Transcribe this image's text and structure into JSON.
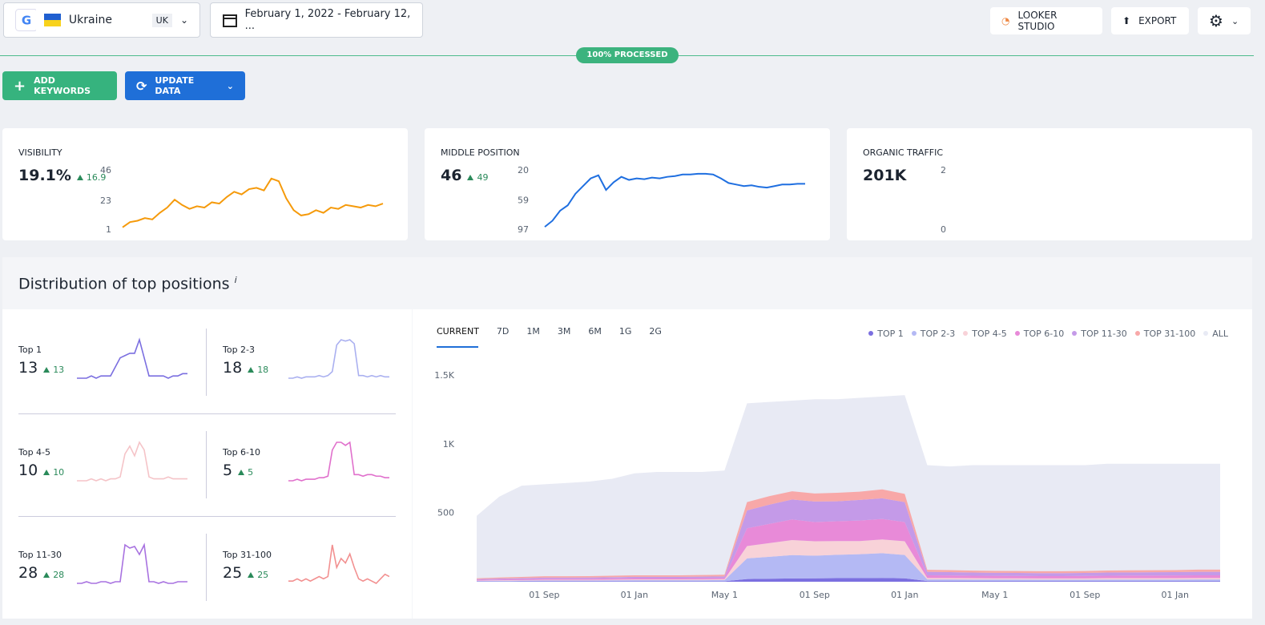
{
  "header": {
    "country": "Ukraine",
    "country_code": "UK",
    "date_range": "February 1, 2022 - February 12, ...",
    "actions": [
      "LOOKER STUDIO",
      "EXPORT"
    ]
  },
  "progress": "100% PROCESSED",
  "toolbar": {
    "add": "ADD KEYWORDS",
    "update": "UPDATE DATA"
  },
  "cards": [
    {
      "title": "VISIBILITY",
      "value": "19.1%",
      "change": 16.9,
      "chart": {
        "type": "line",
        "color": "#f59a0b",
        "ylim": [
          1,
          46
        ],
        "yticks": [
          46,
          23,
          1
        ],
        "values": [
          3,
          7,
          8,
          10,
          9,
          14,
          18,
          24,
          20,
          17,
          19,
          18,
          22,
          21,
          26,
          30,
          28,
          32,
          33,
          31,
          40,
          38,
          25,
          16,
          12,
          13,
          16,
          14,
          18,
          17,
          20,
          19,
          18,
          20,
          19,
          21
        ]
      }
    },
    {
      "title": "MIDDLE POSITION",
      "value": "46",
      "change": 49,
      "chart": {
        "type": "line",
        "color": "#1f6fe0",
        "ylim": [
          97,
          20
        ],
        "yticks": [
          20,
          59,
          97
        ],
        "values": [
          93,
          85,
          72,
          65,
          50,
          40,
          30,
          26,
          45,
          35,
          28,
          32,
          30,
          31,
          29,
          30,
          28,
          27,
          25,
          25,
          24,
          24,
          25,
          30,
          36,
          38,
          40,
          39,
          41,
          42,
          40,
          38,
          38,
          37,
          37
        ]
      }
    },
    {
      "title": "ORGANIC TRAFFIC",
      "value": "201K",
      "chart": {
        "type": "line",
        "ylim": [
          0,
          2
        ],
        "yticks": [
          2,
          0
        ]
      }
    }
  ],
  "distribution": {
    "title": "Distribution of top positions",
    "info": "i",
    "tiles": [
      {
        "label": "Top 1",
        "value": 13,
        "change": 13,
        "color": "#7b6fe0",
        "values": [
          3,
          3,
          3,
          4,
          3,
          4,
          4,
          4,
          8,
          12,
          13,
          14,
          14,
          20,
          12,
          4,
          4,
          4,
          4,
          3,
          4,
          4,
          5,
          5
        ]
      },
      {
        "label": "Top 2-3",
        "value": 18,
        "change": 18,
        "color": "#aab0f0",
        "values": [
          5,
          5,
          6,
          5,
          6,
          6,
          6,
          7,
          6,
          7,
          10,
          30,
          34,
          33,
          34,
          31,
          7,
          7,
          6,
          7,
          6,
          7,
          6,
          6
        ]
      },
      {
        "label": "Top 4-5",
        "value": 10,
        "change": 10,
        "color": "#f5c4c8",
        "values": [
          4,
          4,
          4,
          5,
          4,
          5,
          4,
          5,
          5,
          6,
          18,
          22,
          17,
          24,
          20,
          6,
          5,
          5,
          5,
          6,
          5,
          5,
          5,
          5
        ]
      },
      {
        "label": "Top 6-10",
        "value": 5,
        "change": 5,
        "color": "#e070cc",
        "values": [
          5,
          5,
          6,
          5,
          6,
          6,
          6,
          7,
          7,
          8,
          25,
          30,
          30,
          28,
          30,
          9,
          9,
          8,
          9,
          9,
          8,
          8,
          7,
          7
        ]
      },
      {
        "label": "Top 11-30",
        "value": 28,
        "change": 28,
        "color": "#a872e0",
        "values": [
          6,
          6,
          7,
          6,
          6,
          7,
          7,
          6,
          7,
          7,
          30,
          28,
          29,
          24,
          30,
          7,
          7,
          6,
          7,
          6,
          6,
          7,
          7,
          7
        ]
      },
      {
        "label": "Top 31-100",
        "value": 25,
        "change": 25,
        "color": "#f29090",
        "values": [
          8,
          8,
          9,
          8,
          9,
          8,
          9,
          10,
          9,
          10,
          24,
          14,
          18,
          16,
          20,
          14,
          9,
          8,
          9,
          8,
          7,
          9,
          11,
          10
        ]
      }
    ],
    "tabs": [
      "CURRENT",
      "7D",
      "1M",
      "3M",
      "6M",
      "1G",
      "2G"
    ],
    "active_tab": 0,
    "chart": {
      "type": "area",
      "stacked": true,
      "ylim": [
        0,
        1600
      ],
      "yticks": [
        500,
        {
          "value": 1000,
          "label": "1K"
        },
        {
          "value": 1500,
          "label": "1.5K"
        }
      ],
      "categories": [
        null,
        null,
        null,
        "01 Sep",
        null,
        null,
        null,
        "01 Jan",
        null,
        null,
        null,
        "May 1",
        null,
        null,
        null,
        "01 Sep",
        null,
        null,
        null,
        "01 Jan",
        null,
        null,
        null,
        "May 1",
        null,
        null,
        null,
        "01 Sep",
        null,
        null,
        null,
        "01 Jan",
        null,
        null
      ],
      "series": [
        {
          "name": "TOP 1",
          "color": "#7b6fe0",
          "values": [
            2,
            2,
            3,
            3,
            3,
            3,
            3,
            4,
            4,
            4,
            4,
            4,
            20,
            22,
            24,
            25,
            26,
            26,
            28,
            25,
            5,
            5,
            5,
            5,
            5,
            5,
            5,
            5,
            5,
            5,
            5,
            5,
            5,
            5
          ]
        },
        {
          "name": "TOP 2-3",
          "color": "#b4b9f4",
          "values": [
            4,
            5,
            5,
            6,
            6,
            6,
            7,
            7,
            7,
            7,
            7,
            8,
            150,
            160,
            170,
            165,
            170,
            175,
            180,
            170,
            12,
            12,
            11,
            11,
            11,
            10,
            10,
            10,
            11,
            11,
            11,
            11,
            12,
            12
          ]
        },
        {
          "name": "TOP 4-5",
          "color": "#f8d2d8",
          "values": [
            3,
            4,
            4,
            5,
            5,
            5,
            5,
            6,
            6,
            6,
            6,
            6,
            90,
            100,
            110,
            105,
            100,
            95,
            100,
            100,
            10,
            10,
            10,
            9,
            9,
            9,
            9,
            9,
            10,
            10,
            10,
            10,
            10,
            10
          ]
        },
        {
          "name": "TOP 6-10",
          "color": "#e88ad8",
          "values": [
            5,
            6,
            7,
            8,
            8,
            8,
            9,
            9,
            9,
            9,
            10,
            10,
            130,
            140,
            150,
            140,
            145,
            150,
            150,
            140,
            20,
            19,
            18,
            18,
            17,
            17,
            17,
            18,
            18,
            19,
            19,
            20,
            20,
            20
          ]
        },
        {
          "name": "TOP 11-30",
          "color": "#c49ae8",
          "values": [
            5,
            6,
            7,
            8,
            8,
            9,
            9,
            10,
            10,
            10,
            10,
            11,
            130,
            140,
            145,
            150,
            145,
            150,
            150,
            145,
            25,
            24,
            23,
            22,
            22,
            22,
            22,
            22,
            23,
            23,
            24,
            24,
            25,
            25
          ]
        },
        {
          "name": "TOP 31-100",
          "color": "#f8a8a8",
          "values": [
            6,
            8,
            9,
            10,
            10,
            10,
            11,
            11,
            11,
            11,
            12,
            12,
            60,
            62,
            60,
            58,
            62,
            60,
            65,
            60,
            15,
            15,
            14,
            14,
            14,
            14,
            14,
            14,
            15,
            15,
            15,
            15,
            16,
            16
          ]
        },
        {
          "name": "ALL",
          "color": "#e8eaf4",
          "stacked": false,
          "values": [
            480,
            620,
            700,
            710,
            720,
            730,
            750,
            790,
            800,
            800,
            800,
            810,
            1300,
            1310,
            1320,
            1330,
            1330,
            1340,
            1350,
            1360,
            850,
            840,
            850,
            850,
            850,
            850,
            850,
            850,
            860,
            860,
            860,
            860,
            860,
            860
          ]
        }
      ]
    }
  }
}
